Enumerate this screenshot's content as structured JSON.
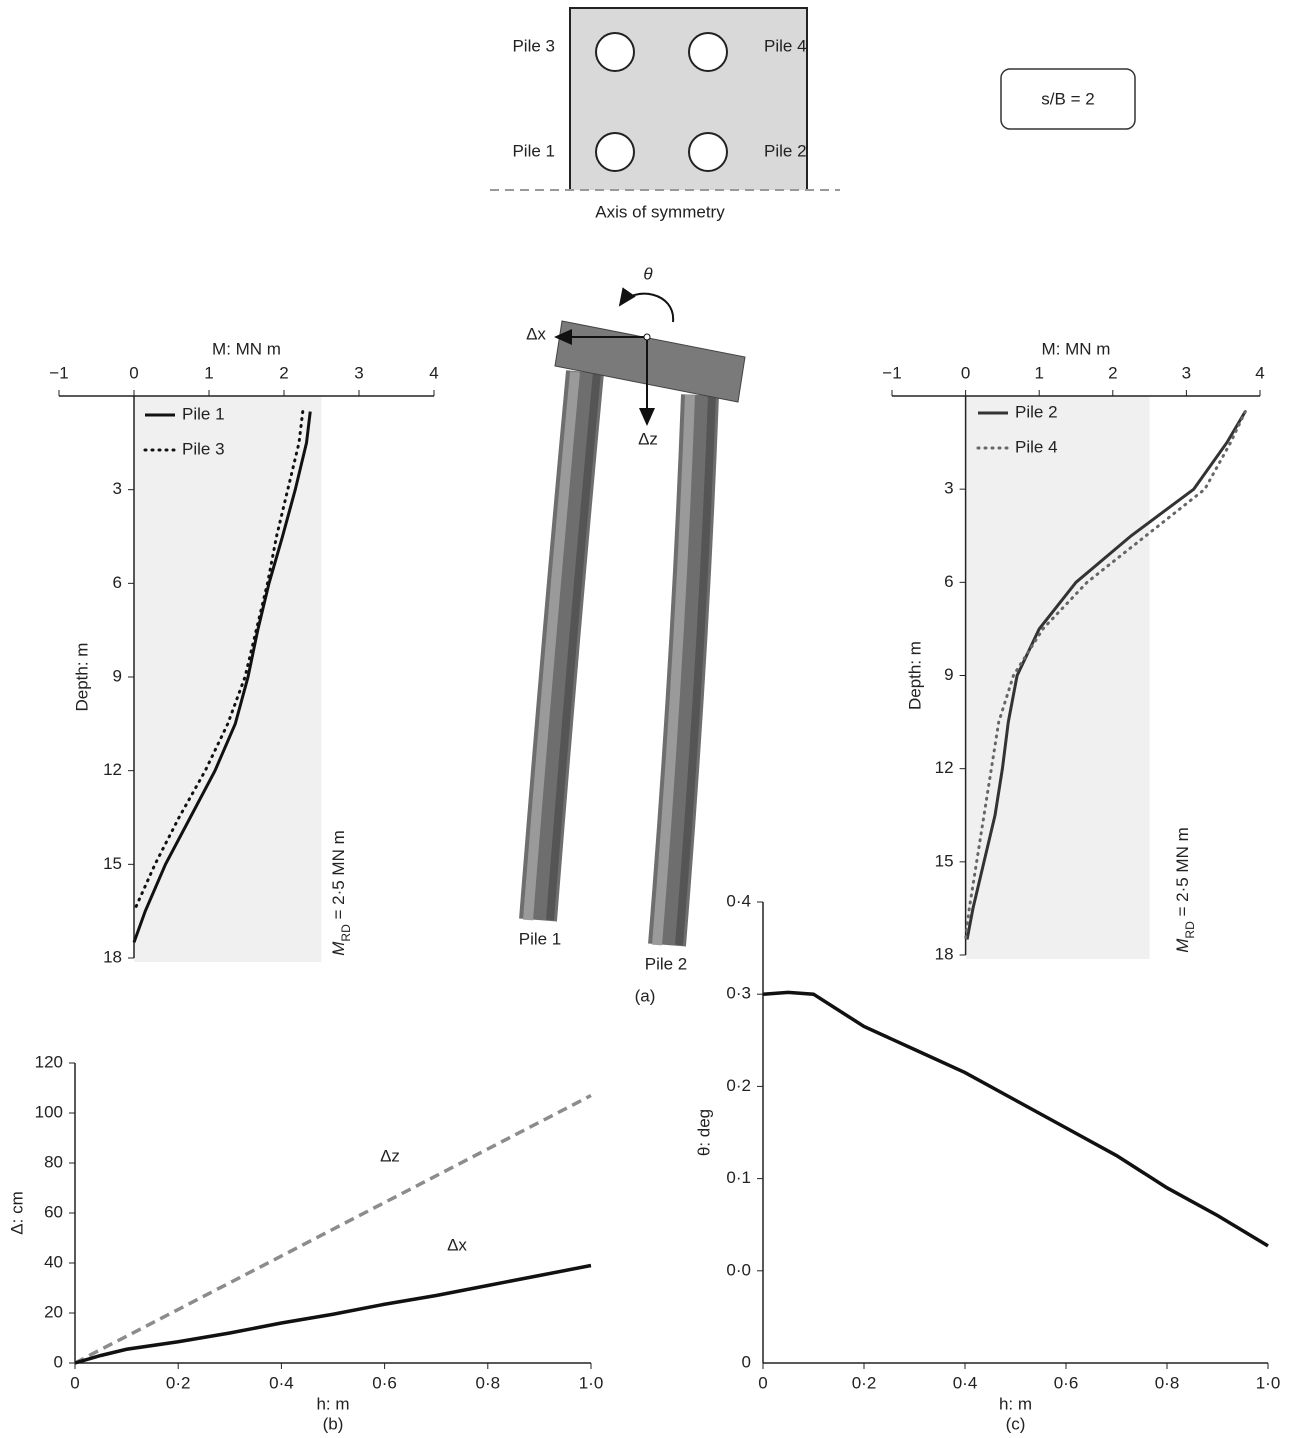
{
  "chart_data": [
    {
      "type": "profile",
      "xlabel": "M: MN m",
      "ylabel": "Depth: m",
      "y_inverted": true,
      "xlim": [
        -1,
        4
      ],
      "xticks": [
        {
          "value": -1,
          "label": "−1"
        },
        0,
        1,
        2,
        3,
        4
      ],
      "ylim": [
        0,
        18
      ],
      "yticks": [
        3,
        6,
        9,
        12,
        15,
        18
      ],
      "shade": [
        0,
        2.5
      ],
      "annotation": {
        "symbol": "M",
        "subscript": "RD",
        "text": " = 2·5 MN m"
      },
      "legend": "upper left",
      "series": [
        {
          "name": "Pile 1",
          "color": "#111111",
          "linestyle": "solid",
          "depth": [
            0.5,
            1.5,
            3,
            4.5,
            6,
            7.5,
            9,
            10.5,
            12,
            13.5,
            15,
            16.5,
            17.5
          ],
          "values": [
            2.35,
            2.3,
            2.15,
            1.98,
            1.8,
            1.65,
            1.52,
            1.35,
            1.08,
            0.75,
            0.42,
            0.15,
            0
          ]
        },
        {
          "name": "Pile 3",
          "color": "#111111",
          "linestyle": "dotted",
          "depth": [
            0.5,
            1.5,
            3,
            4.5,
            6,
            7.5,
            9,
            10.5,
            12,
            13.5,
            15,
            16.5
          ],
          "values": [
            2.25,
            2.2,
            2.05,
            1.9,
            1.78,
            1.63,
            1.48,
            1.25,
            0.95,
            0.6,
            0.28,
            0
          ]
        }
      ]
    },
    {
      "type": "profile",
      "xlabel": "M: MN m",
      "ylabel": "Depth: m",
      "y_inverted": true,
      "xlim": [
        -1,
        4
      ],
      "xticks": [
        {
          "value": -1,
          "label": "−1"
        },
        0,
        1,
        2,
        3,
        4
      ],
      "ylim": [
        0,
        18
      ],
      "yticks": [
        3,
        6,
        9,
        12,
        15,
        18
      ],
      "shade": [
        0,
        2.5
      ],
      "annotation": {
        "symbol": "M",
        "subscript": "RD",
        "text": " = 2·5 MN m"
      },
      "legend": "upper left",
      "series": [
        {
          "name": "Pile 2",
          "color": "#333333",
          "linestyle": "solid",
          "depth": [
            0.5,
            1.5,
            3,
            4.5,
            6,
            7.5,
            9,
            10.5,
            12,
            13.5,
            15,
            16.5,
            17.5
          ],
          "values": [
            3.8,
            3.55,
            3.1,
            2.25,
            1.5,
            1.0,
            0.7,
            0.58,
            0.5,
            0.4,
            0.25,
            0.1,
            0.02
          ]
        },
        {
          "name": "Pile 4",
          "color": "#666666",
          "linestyle": "dotted",
          "depth": [
            0.5,
            1.5,
            3,
            4.5,
            6,
            7.5,
            9,
            10.5,
            12,
            13.5,
            15,
            16.5,
            17.5
          ],
          "values": [
            3.8,
            3.6,
            3.25,
            2.45,
            1.65,
            1.05,
            0.65,
            0.45,
            0.35,
            0.25,
            0.15,
            0.05,
            0
          ]
        }
      ]
    },
    {
      "type": "line",
      "xlabel": "h: m",
      "ylabel": "Δ: cm",
      "caption": "(b)",
      "xlim": [
        0,
        1
      ],
      "xticks": [
        0,
        {
          "value": 0.2,
          "label": "0·2"
        },
        {
          "value": 0.4,
          "label": "0·4"
        },
        {
          "value": 0.6,
          "label": "0·6"
        },
        {
          "value": 0.8,
          "label": "0·8"
        },
        {
          "value": 1,
          "label": "1·0"
        }
      ],
      "ylim": [
        0,
        120
      ],
      "yticks": [
        0,
        20,
        40,
        60,
        80,
        100,
        120
      ],
      "x": [
        0,
        0.05,
        0.1,
        0.2,
        0.3,
        0.4,
        0.5,
        0.6,
        0.7,
        0.8,
        0.9,
        1.0
      ],
      "series": [
        {
          "name": "Δz",
          "color": "#8c8c8c",
          "linestyle": "dashed",
          "values": [
            0,
            5.4,
            10.7,
            21.4,
            32.1,
            42.8,
            53.5,
            64.2,
            74.9,
            85.6,
            96.3,
            107
          ]
        },
        {
          "name": "Δx",
          "color": "#111111",
          "linestyle": "solid",
          "values": [
            0,
            3,
            5.5,
            8.5,
            12,
            16,
            19.5,
            23.5,
            27,
            31,
            35,
            39
          ]
        }
      ]
    },
    {
      "type": "line",
      "xlabel": "h: m",
      "ylabel": "θ: deg",
      "caption": "(c)",
      "origin_label": "0",
      "xlim": [
        0,
        1
      ],
      "xticks": [
        0,
        {
          "value": 0.2,
          "label": "0·2"
        },
        {
          "value": 0.4,
          "label": "0·4"
        },
        {
          "value": 0.6,
          "label": "0·6"
        },
        {
          "value": 0.8,
          "label": "0·8"
        },
        {
          "value": 1,
          "label": "1·0"
        }
      ],
      "ylim": [
        -0.1,
        0.4
      ],
      "yticks": [
        {
          "value": 0,
          "label": "0·0"
        },
        {
          "value": 0.1,
          "label": "0·1"
        },
        {
          "value": 0.2,
          "label": "0·2"
        },
        {
          "value": 0.3,
          "label": "0·3"
        },
        {
          "value": 0.4,
          "label": "0·4"
        }
      ],
      "x": [
        0,
        0.05,
        0.1,
        0.2,
        0.3,
        0.4,
        0.5,
        0.6,
        0.7,
        0.8,
        0.9,
        1.0
      ],
      "series": [
        {
          "color": "#111111",
          "linestyle": "solid",
          "values": [
            0.3,
            0.302,
            0.3,
            0.265,
            0.24,
            0.215,
            0.185,
            0.155,
            0.125,
            0.09,
            0.06,
            0.027
          ]
        }
      ]
    }
  ],
  "diagram": {
    "layout": {
      "labels": [
        "Pile 3",
        "Pile 4",
        "Pile 1",
        "Pile 2"
      ],
      "axis": "Axis of symmetry",
      "spacing": "s/B = 2"
    },
    "model": {
      "rotation": "θ",
      "horizontal": "Δx",
      "vertical": "Δz",
      "piles": [
        "Pile 1",
        "Pile 2"
      ],
      "caption": "(a)"
    }
  }
}
